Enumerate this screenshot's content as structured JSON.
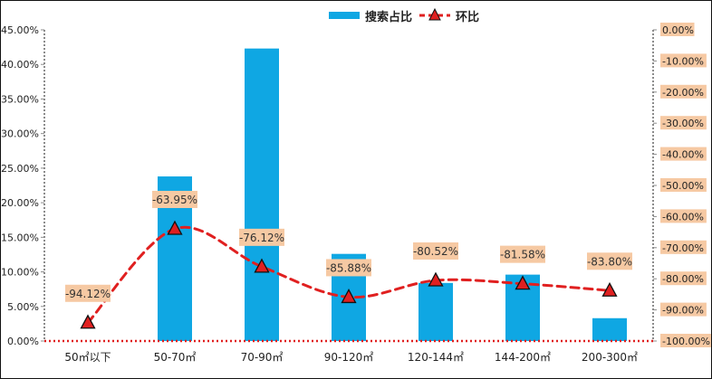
{
  "chart_data": {
    "type": "bar",
    "title": "",
    "categories": [
      "50㎡以下",
      "50-70㎡",
      "70-90㎡",
      "90-120㎡",
      "120-144㎡",
      "144-200㎡",
      "200-300㎡"
    ],
    "series": [
      {
        "name": "搜索占比",
        "type": "bar",
        "axis": "left",
        "color": "#0fa7e3",
        "values": [
          0.0,
          23.8,
          42.3,
          12.6,
          8.4,
          9.6,
          3.3
        ]
      },
      {
        "name": "环比",
        "type": "line",
        "axis": "right",
        "color": "#e02020",
        "smooth": true,
        "dashed": true,
        "marker": "triangle",
        "values": [
          -94.12,
          -63.95,
          -76.12,
          -85.88,
          -80.52,
          -81.58,
          -83.8
        ],
        "labels": [
          "-94.12%",
          "-63.95%",
          "-76.12%",
          "-85.88%",
          "-80.52%",
          "-81.58%",
          "-83.80%"
        ]
      }
    ],
    "y_left": {
      "ylim": [
        0,
        45
      ],
      "ticks": [
        "0.00%",
        "5.00%",
        "10.00%",
        "15.00%",
        "20.00%",
        "25.00%",
        "30.00%",
        "35.00%",
        "40.00%",
        "45.00%"
      ]
    },
    "y_right": {
      "ylim": [
        -100,
        0
      ],
      "ticks": [
        "0.00%",
        "-10.00%",
        "-20.00%",
        "-30.00%",
        "-40.00%",
        "-50.00%",
        "-60.00%",
        "-70.00%",
        "-80.00%",
        "-90.00%",
        "-100.00%"
      ]
    },
    "legend": {
      "position": "top",
      "items": [
        "搜索占比",
        "环比"
      ]
    },
    "label_box_color": "#f6c9a3",
    "grid": false
  }
}
